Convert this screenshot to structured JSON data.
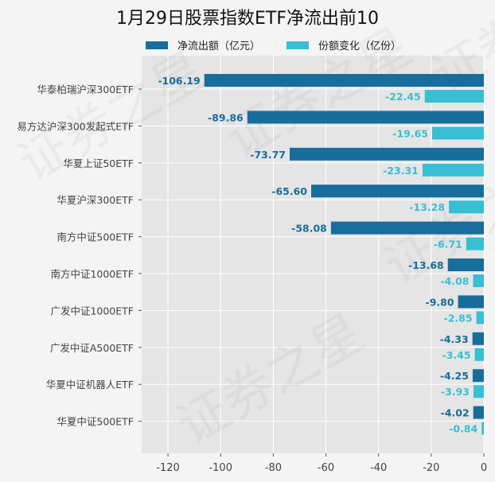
{
  "chart_data": {
    "type": "bar",
    "orientation": "horizontal",
    "title": "1月29日股票指数ETF净流出前10",
    "xlabel": "",
    "ylabel": "",
    "xlim": [
      -130,
      0
    ],
    "xticks": [
      -120,
      -100,
      -80,
      -60,
      -40,
      -20,
      0
    ],
    "grid": true,
    "legend_position": "top",
    "categories": [
      "华泰柏瑞沪深300ETF",
      "易方达沪深300发起式ETF",
      "华夏上证50ETF",
      "华夏沪深300ETF",
      "南方中证500ETF",
      "南方中证1000ETF",
      "广发中证1000ETF",
      "广发中证A500ETF",
      "华夏中证机器人ETF",
      "华夏中证500ETF"
    ],
    "series": [
      {
        "name": "净流出额（亿元）",
        "color": "#176d9c",
        "values": [
          -106.19,
          -89.86,
          -73.77,
          -65.6,
          -58.08,
          -13.68,
          -9.8,
          -4.33,
          -4.25,
          -4.02
        ],
        "labels": [
          "-106.19",
          "-89.86",
          "-73.77",
          "-65.60",
          "-58.08",
          "-13.68",
          "-9.80",
          "-4.33",
          "-4.25",
          "-4.02"
        ]
      },
      {
        "name": "份额变化（亿份）",
        "color": "#38bfd4",
        "values": [
          -22.45,
          -19.65,
          -23.31,
          -13.28,
          -6.71,
          -4.08,
          -2.85,
          -3.45,
          -3.93,
          -0.84
        ],
        "labels": [
          "-22.45",
          "-19.65",
          "-23.31",
          "-13.28",
          "-6.71",
          "-4.08",
          "-2.85",
          "-3.45",
          "-3.93",
          "-0.84"
        ]
      }
    ],
    "watermark": "证券之星"
  }
}
